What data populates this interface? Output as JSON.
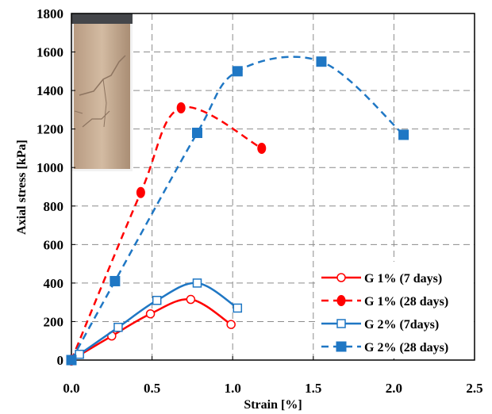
{
  "chart_data": {
    "type": "line",
    "xlabel": "Strain [%]",
    "ylabel": "Axial stress [kPa]",
    "xlim": [
      0,
      2.5
    ],
    "ylim": [
      0,
      1800
    ],
    "xticks": [
      "0.0",
      "0.5",
      "1.0",
      "1.5",
      "2.0",
      "2.5"
    ],
    "yticks": [
      "0",
      "200",
      "400",
      "600",
      "800",
      "1000",
      "1200",
      "1400",
      "1600",
      "1800"
    ],
    "grid": "dashed",
    "legend_position": "bottom-right",
    "inset": "photo of cylindrical sample after test",
    "series": [
      {
        "name": "G 1% (7 days)",
        "color": "#ff0000",
        "line": "solid",
        "marker": "circle-open",
        "points": [
          [
            0.0,
            0
          ],
          [
            0.25,
            125
          ],
          [
            0.49,
            240
          ],
          [
            0.74,
            315
          ],
          [
            0.99,
            185
          ]
        ]
      },
      {
        "name": "G 1% (28 days)",
        "color": "#ff0000",
        "line": "dashed",
        "marker": "circle-filled",
        "points": [
          [
            0.0,
            0
          ],
          [
            0.43,
            870
          ],
          [
            0.68,
            1310
          ],
          [
            1.18,
            1100
          ]
        ]
      },
      {
        "name": "G 2% (7days)",
        "color": "#1f77c4",
        "line": "solid",
        "marker": "square-open",
        "points": [
          [
            0.05,
            30
          ],
          [
            0.29,
            170
          ],
          [
            0.53,
            310
          ],
          [
            0.78,
            400
          ],
          [
            1.03,
            270
          ]
        ]
      },
      {
        "name": "G 2% (28 days)",
        "color": "#1f77c4",
        "line": "dashed",
        "marker": "square-filled",
        "points": [
          [
            0.0,
            0
          ],
          [
            0.27,
            410
          ],
          [
            0.78,
            1180
          ],
          [
            1.03,
            1500
          ],
          [
            1.55,
            1550
          ],
          [
            2.06,
            1170
          ]
        ]
      }
    ]
  }
}
